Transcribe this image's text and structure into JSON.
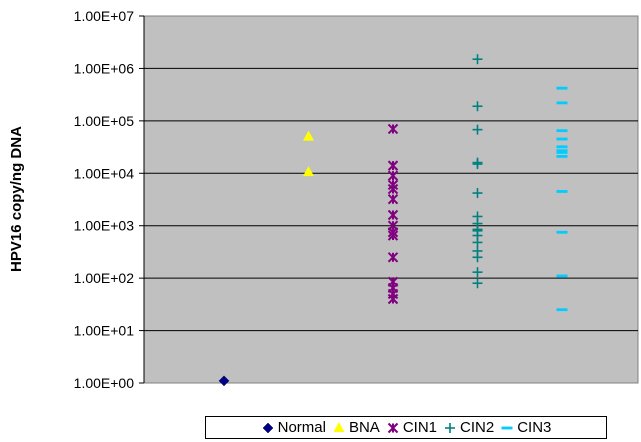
{
  "chart_data": {
    "type": "scatter",
    "title": "",
    "xlabel": "",
    "ylabel": "HPV16 copy/ng DNA",
    "y_scale": "log",
    "ylim": [
      1,
      10000000
    ],
    "y_ticks": [
      "1.00E+00",
      "1.00E+01",
      "1.00E+02",
      "1.00E+03",
      "1.00E+04",
      "1.00E+05",
      "1.00E+06",
      "1.00E+07"
    ],
    "grid": true,
    "plot_background": "#c0c0c0",
    "legend_position": "bottom",
    "series": [
      {
        "name": "Normal",
        "marker": "diamond",
        "color": "#00008b",
        "x": 1,
        "y": [
          1.1
        ]
      },
      {
        "name": "BNA",
        "marker": "triangle",
        "color": "#ffff00",
        "x": 2,
        "y": [
          50000,
          10500
        ]
      },
      {
        "name": "CIN1",
        "marker": "star",
        "color": "#800080",
        "x": 3,
        "y": [
          70000,
          14000,
          9000,
          6000,
          5000,
          3200,
          1600,
          1000,
          750,
          650,
          250,
          85,
          65,
          50,
          40
        ]
      },
      {
        "name": "CIN2",
        "marker": "plus",
        "color": "#008080",
        "x": 4,
        "y": [
          1500000,
          190000,
          68000,
          16000,
          15000,
          4200,
          1500,
          1100,
          850,
          800,
          650,
          480,
          330,
          250,
          130,
          80
        ]
      },
      {
        "name": "CIN3",
        "marker": "dash",
        "color": "#00ccff",
        "x": 5,
        "y": [
          420000,
          220000,
          65000,
          45000,
          32000,
          27000,
          25000,
          21000,
          4500,
          750,
          110,
          25
        ]
      }
    ]
  }
}
